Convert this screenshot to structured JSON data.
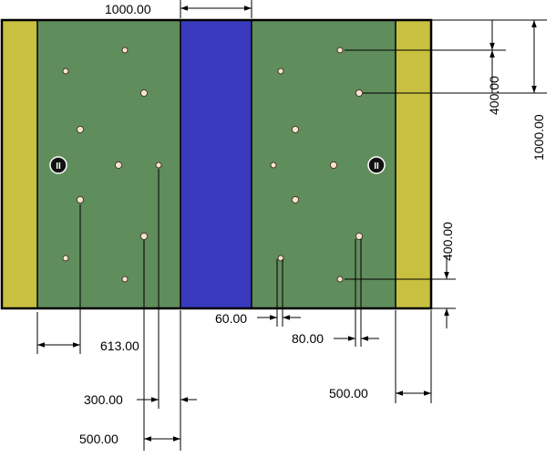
{
  "drawing": {
    "colors": {
      "side_strip": "#c8c040",
      "field": "#5f8d5c",
      "center_band": "#3a3abf",
      "outline": "#000000",
      "hole_fill": "#f7e4d3",
      "hole_stroke": "#4a3a2a",
      "target_fill": "#111111",
      "target_mark": "#ffffff"
    },
    "dimensions": {
      "top_center_width": "1000.00",
      "right_top_offset": "400.00",
      "right_overall": "1000.00",
      "right_bottom_offset": "400.00",
      "left_hole_offset": "613.00",
      "hole_spacing_small": "60.00",
      "hole_spacing_medium": "80.00",
      "left_inner_300": "300.00",
      "left_inner_500": "500.00",
      "right_strip_500": "500.00"
    },
    "markers": {
      "left_target": "II",
      "right_target": "II"
    }
  }
}
